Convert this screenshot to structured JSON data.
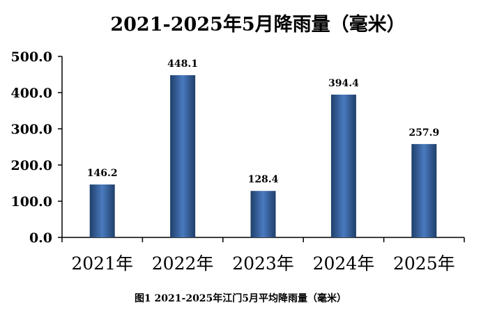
{
  "caption": "图1 2021-2025年江门5月平均降雨量（毫米）",
  "colors": {
    "bar_edge": "#1f3f6a",
    "bar_center": "#4a7abf",
    "axis": "#000000",
    "text": "#000000"
  },
  "chart_data": {
    "type": "bar",
    "title": "2021-2025年5月降雨量（毫米）",
    "categories": [
      "2021年",
      "2022年",
      "2023年",
      "2024年",
      "2025年"
    ],
    "values": [
      146.2,
      448.1,
      128.4,
      394.4,
      257.9
    ],
    "value_labels": [
      "146.2",
      "448.1",
      "128.4",
      "394.4",
      "257.9"
    ],
    "ylim": [
      0,
      500
    ],
    "yticks": [
      0,
      100,
      200,
      300,
      400,
      500
    ],
    "ytick_labels": [
      "0.0",
      "100.0",
      "200.0",
      "300.0",
      "400.0",
      "500.0"
    ],
    "grid": false,
    "legend": "none"
  }
}
